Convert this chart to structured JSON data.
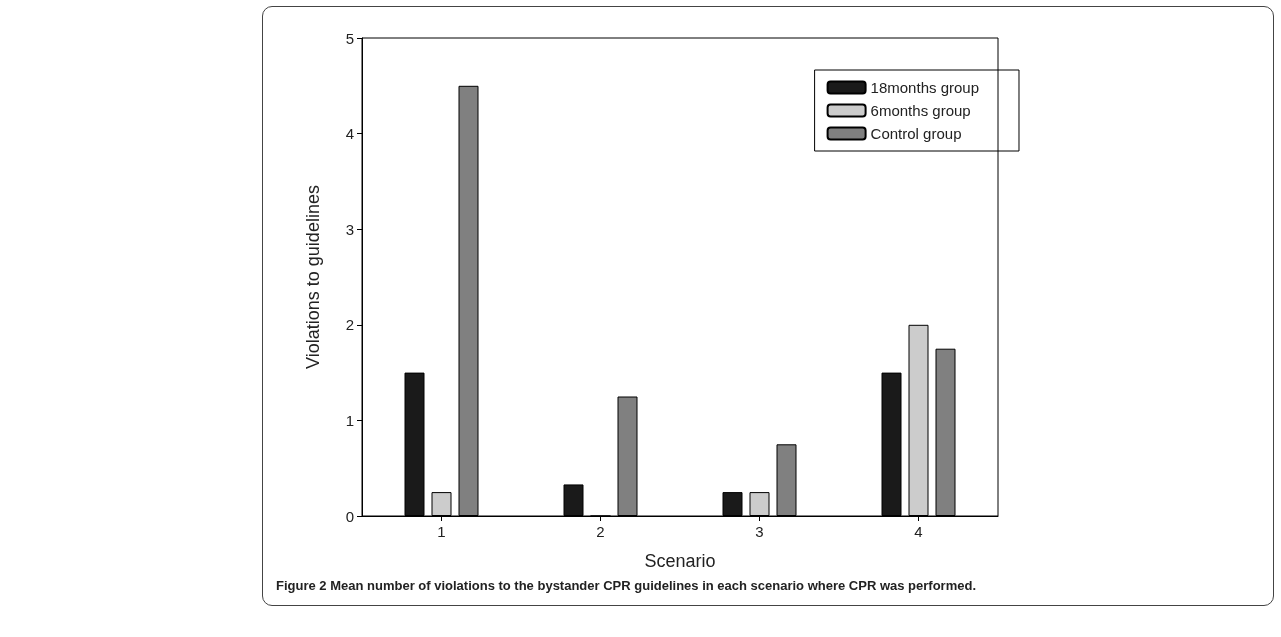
{
  "chart_data": {
    "type": "bar",
    "xlabel": "Scenario",
    "ylabel": "Violations to guidelines",
    "categories": [
      "1",
      "2",
      "3",
      "4"
    ],
    "series": [
      {
        "name": "18months group",
        "color": "#1a1a1a",
        "values": [
          1.5,
          0.33,
          0.25,
          1.5
        ]
      },
      {
        "name": "6months group",
        "color": "#cccccc",
        "values": [
          0.25,
          0,
          0.25,
          2.0
        ]
      },
      {
        "name": "Control group",
        "color": "#808080",
        "values": [
          4.5,
          1.25,
          0.75,
          1.75
        ]
      }
    ],
    "ylim": [
      0,
      5
    ],
    "yticks": [
      0,
      1,
      2,
      3,
      4,
      5
    ],
    "grid": false,
    "legend": "top right",
    "annotations": [
      "Figure 2 Mean number of violations to the bystander CPR guidelines in each scenario where CPR was performed."
    ]
  }
}
